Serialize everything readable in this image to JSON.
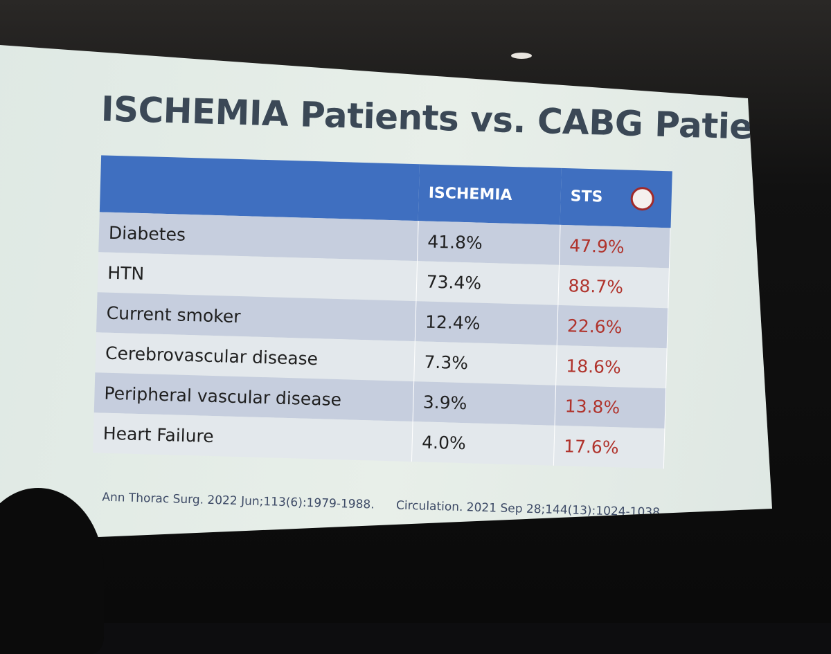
{
  "title": "ISCHEMIA Patients vs. CABG Patients",
  "table": {
    "columns": [
      "ISCHEMIA",
      "STS"
    ],
    "rows": [
      [
        "Diabetes",
        "41.8%",
        "47.9%"
      ],
      [
        "HTN",
        "73.4%",
        "88.7%"
      ],
      [
        "Current smoker",
        "12.4%",
        "22.6%"
      ],
      [
        "Cerebrovascular disease",
        "7.3%",
        "18.6%"
      ],
      [
        "Peripheral vascular disease",
        "3.9%",
        "13.8%"
      ],
      [
        "Heart Failure",
        "4.0%",
        "17.6%"
      ]
    ]
  },
  "citations": [
    "Ann Thorac Surg. 2022 Jun;113(6):1979-1988.",
    "Circulation. 2021 Sep 28;144(13):1024-1038."
  ]
}
